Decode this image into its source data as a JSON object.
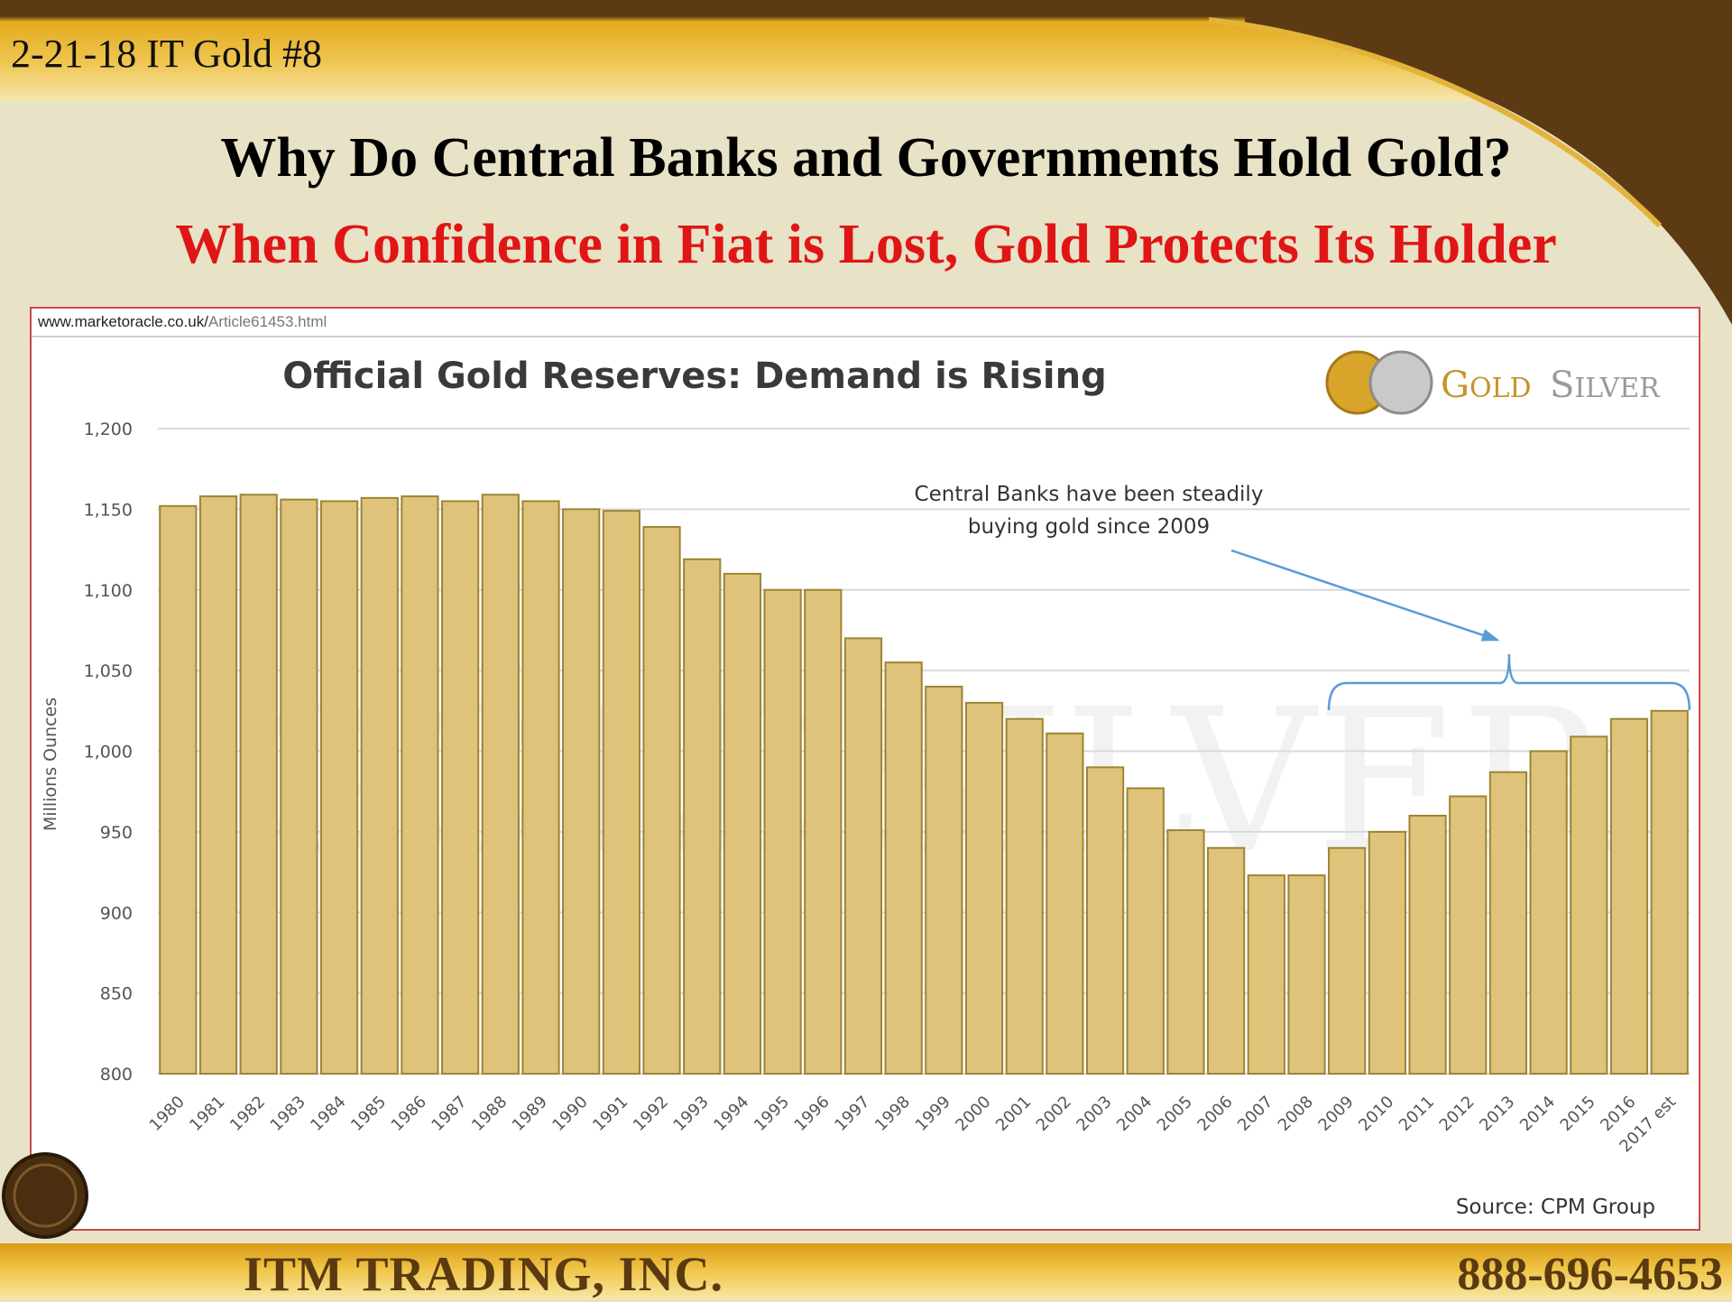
{
  "slide": {
    "id_label": "2-21-18 IT Gold #8",
    "title": "Why Do Central Banks and Governments Hold Gold?",
    "subtitle": "When Confidence in Fiat is Lost, Gold Protects Its Holder"
  },
  "source_url": {
    "domain": "www.marketoracle.co.uk/",
    "path": "Article61453.html"
  },
  "logo": {
    "text_gold_cap": "G",
    "text_gold_rest": "OLD",
    "text_silver_cap": "S",
    "text_silver_rest": "ILVER"
  },
  "footer": {
    "company": "ITM TRADING, INC.",
    "phone": "888-696-4653"
  },
  "colors": {
    "bar_fill": "#dfc37a",
    "bar_stroke": "#9e8433",
    "annotation": "#5b9bd5",
    "subtitle_red": "#e01515",
    "footer_text": "#5a3a10"
  },
  "chart_data": {
    "type": "bar",
    "title": "Official Gold Reserves: Demand is Rising",
    "ylabel": "Millions Ounces",
    "xlabel": "",
    "ylim": [
      800,
      1200
    ],
    "yticks": [
      800,
      850,
      900,
      950,
      1000,
      1050,
      1100,
      1150,
      1200
    ],
    "ytick_labels": [
      "800",
      "850",
      "900",
      "950",
      "1,000",
      "1,050",
      "1,100",
      "1,150",
      "1,200"
    ],
    "grid": true,
    "categories": [
      "1980",
      "1981",
      "1982",
      "1983",
      "1984",
      "1985",
      "1986",
      "1987",
      "1988",
      "1989",
      "1990",
      "1991",
      "1992",
      "1993",
      "1994",
      "1995",
      "1996",
      "1997",
      "1998",
      "1999",
      "2000",
      "2001",
      "2002",
      "2003",
      "2004",
      "2005",
      "2006",
      "2007",
      "2008",
      "2009",
      "2010",
      "2011",
      "2012",
      "2013",
      "2014",
      "2015",
      "2016",
      "2017 est"
    ],
    "values": [
      1152,
      1158,
      1159,
      1156,
      1155,
      1157,
      1158,
      1155,
      1159,
      1155,
      1150,
      1149,
      1139,
      1119,
      1110,
      1100,
      1100,
      1070,
      1055,
      1040,
      1030,
      1020,
      1011,
      990,
      977,
      951,
      940,
      923,
      923,
      940,
      950,
      960,
      972,
      987,
      1000,
      1009,
      1020,
      1025
    ],
    "annotation": {
      "line1": "Central Banks have been steadily",
      "line2": "buying gold since 2009"
    },
    "watermark": "GOLDSILVER",
    "source": "Source: CPM Group"
  }
}
